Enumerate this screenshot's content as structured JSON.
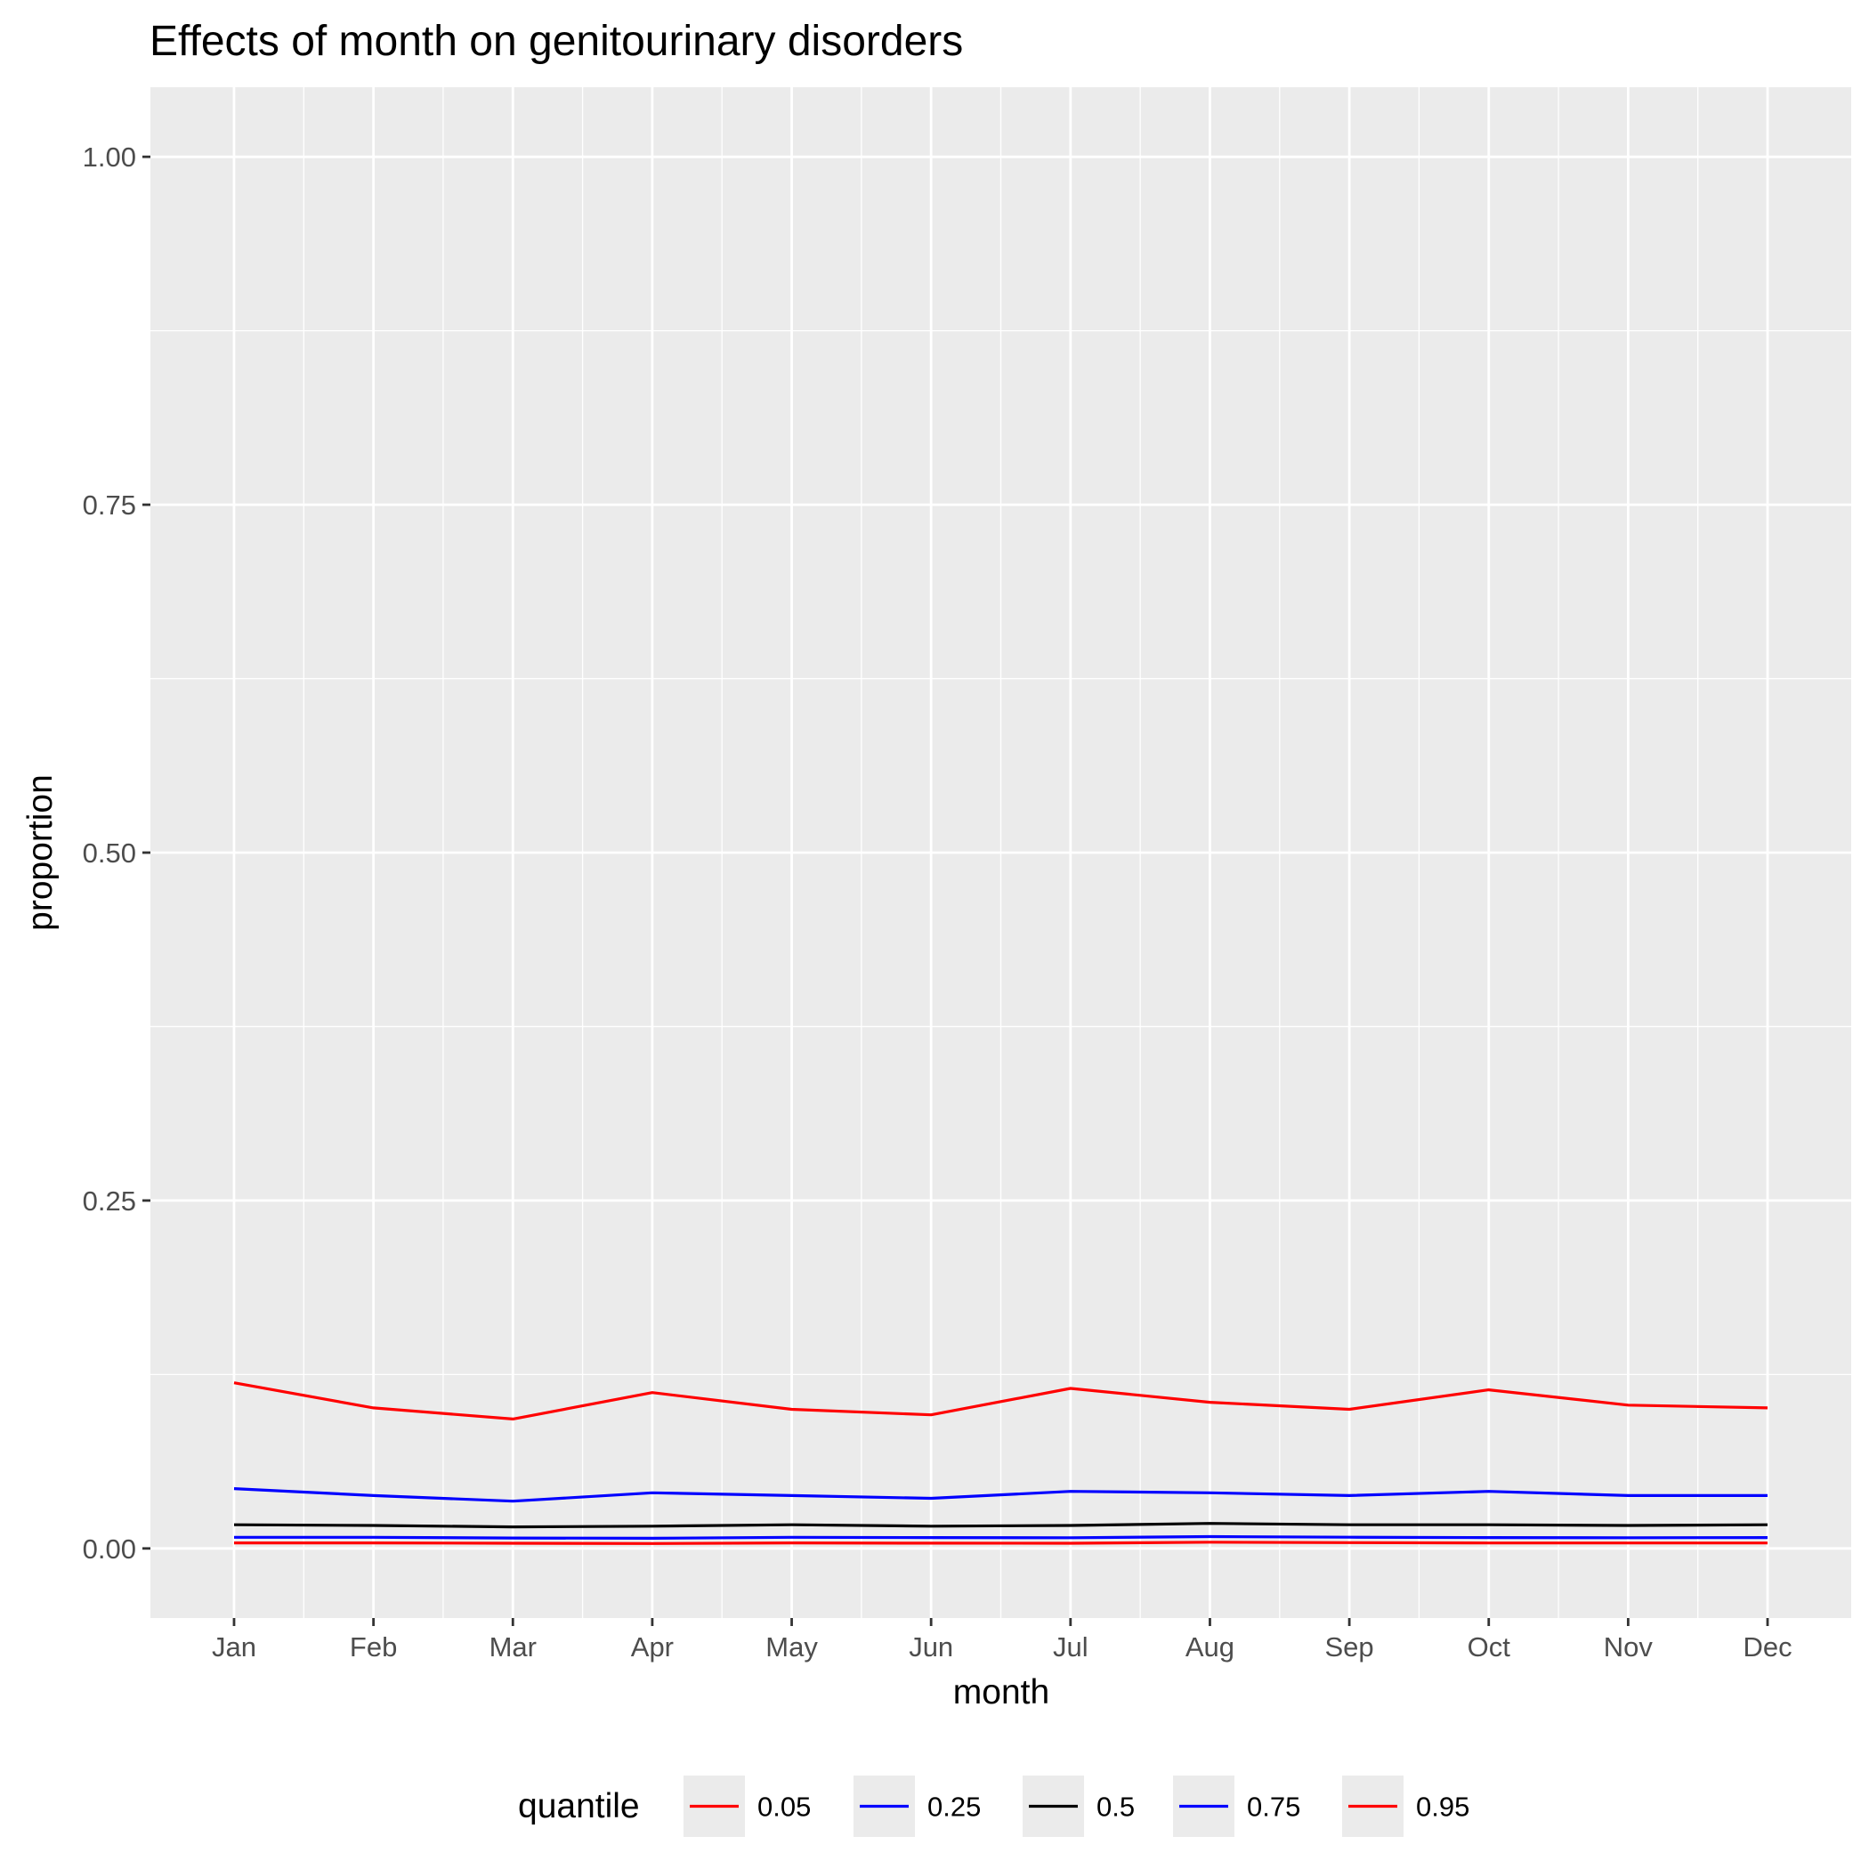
{
  "chart_data": {
    "type": "line",
    "title": "Effects of month on genitourinary disorders",
    "xlabel": "month",
    "ylabel": "proportion",
    "categories": [
      "Jan",
      "Feb",
      "Mar",
      "Apr",
      "May",
      "Jun",
      "Jul",
      "Aug",
      "Sep",
      "Oct",
      "Nov",
      "Dec"
    ],
    "ylim": [
      -0.05,
      1.05
    ],
    "yticks": [
      {
        "value": 0,
        "label": "0.00"
      },
      {
        "value": 0.25,
        "label": "0.25"
      },
      {
        "value": 0.5,
        "label": "0.50"
      },
      {
        "value": 0.75,
        "label": "0.75"
      },
      {
        "value": 1,
        "label": "1.00"
      }
    ],
    "grid": true,
    "legend": {
      "title": "quantile",
      "position": "bottom"
    },
    "series": [
      {
        "name": "0.05",
        "color": "#ff0000",
        "values": [
          0.004,
          0.004,
          0.0037,
          0.0035,
          0.004,
          0.0038,
          0.0037,
          0.0045,
          0.0042,
          0.0039,
          0.0039,
          0.0039
        ]
      },
      {
        "name": "0.25",
        "color": "#0000ff",
        "values": [
          0.008,
          0.008,
          0.0075,
          0.0073,
          0.008,
          0.0078,
          0.0077,
          0.0085,
          0.0081,
          0.0078,
          0.0077,
          0.0078
        ]
      },
      {
        "name": "0.5",
        "color": "#000000",
        "values": [
          0.017,
          0.0165,
          0.0155,
          0.016,
          0.017,
          0.016,
          0.0165,
          0.018,
          0.017,
          0.017,
          0.0165,
          0.017
        ]
      },
      {
        "name": "0.75",
        "color": "#0000ff",
        "values": [
          0.043,
          0.038,
          0.034,
          0.04,
          0.038,
          0.036,
          0.041,
          0.04,
          0.038,
          0.041,
          0.038,
          0.038
        ]
      },
      {
        "name": "0.95",
        "color": "#ff0000",
        "values": [
          0.119,
          0.101,
          0.093,
          0.112,
          0.1,
          0.096,
          0.115,
          0.105,
          0.1,
          0.114,
          0.103,
          0.101
        ]
      }
    ]
  }
}
